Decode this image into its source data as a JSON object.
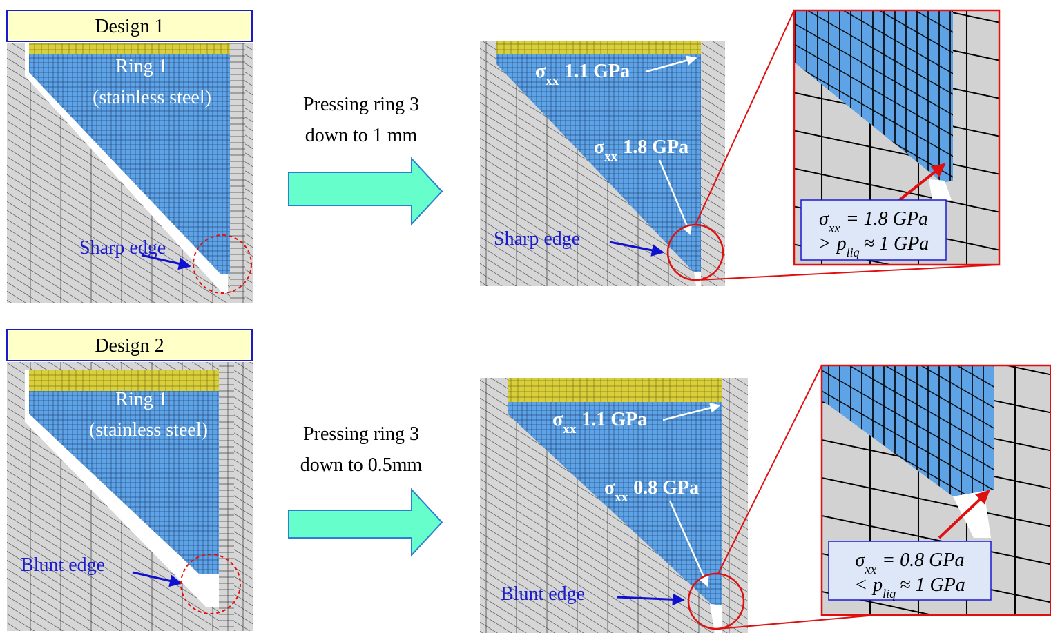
{
  "panels": [
    {
      "design": "Design 1",
      "ring": {
        "name": "Ring 1",
        "material": "(stainless steel)"
      },
      "edge_before": "Sharp edge",
      "action": [
        "Pressing ring 3",
        "down to 1 mm"
      ],
      "stress_top": {
        "symbol": "σ",
        "subscript": "xx",
        "value": "1.1 GPa"
      },
      "stress_edge": {
        "symbol": "σ",
        "subscript": "xx",
        "value": "1.8 GPa"
      },
      "edge_after": "Sharp edge",
      "callout": {
        "stress": {
          "symbol": "σ",
          "subscript": "xx",
          "value": "= 1.8 GPa"
        },
        "comparison": {
          "operator": ">",
          "symbol": "p",
          "subscript": "liq",
          "value": "≈ 1 GPa"
        }
      }
    },
    {
      "design": "Design 2",
      "ring": {
        "name": "Ring 1",
        "material": "(stainless steel)"
      },
      "edge_before": "Blunt edge",
      "action": [
        "Pressing ring 3",
        "down to 0.5mm"
      ],
      "stress_top": {
        "symbol": "σ",
        "subscript": "xx",
        "value": "1.1 GPa"
      },
      "stress_edge": {
        "symbol": "σ",
        "subscript": "xx",
        "value": "0.8 GPa"
      },
      "edge_after": "Blunt edge",
      "callout": {
        "stress": {
          "symbol": "σ",
          "subscript": "xx",
          "value": "= 0.8 GPa"
        },
        "comparison": {
          "operator": "<",
          "symbol": "p",
          "subscript": "liq",
          "value": "≈ 1 GPa"
        }
      }
    }
  ]
}
